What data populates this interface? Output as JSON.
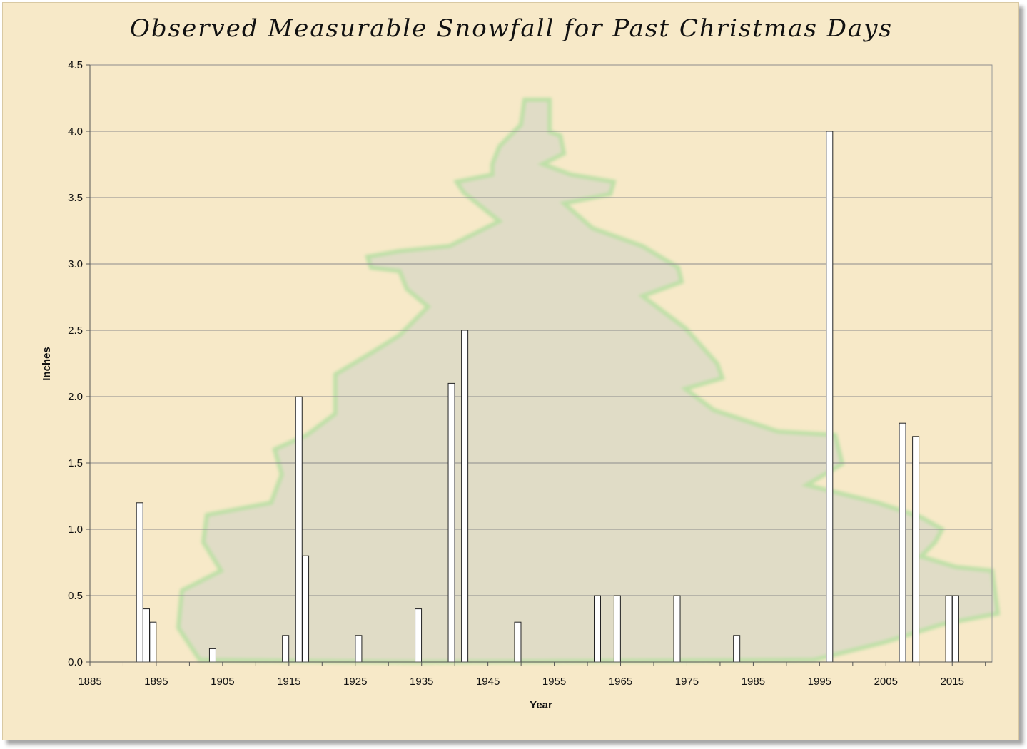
{
  "chart_data": {
    "type": "bar",
    "title": "Observed Measurable Snowfall for Past Christmas Days",
    "xlabel": "Year",
    "ylabel": "Inches",
    "xlim": [
      1885,
      2021
    ],
    "ylim": [
      0,
      4.5
    ],
    "x_ticks": [
      1885,
      1895,
      1905,
      1915,
      1925,
      1935,
      1945,
      1955,
      1965,
      1975,
      1985,
      1995,
      2005,
      2015
    ],
    "y_ticks": [
      "0.0",
      "0.5",
      "1.0",
      "1.5",
      "2.0",
      "2.5",
      "3.0",
      "3.5",
      "4.0",
      "4.5"
    ],
    "grid": "horizontal",
    "legend": "none",
    "bar_color": "#ffffff",
    "series": [
      {
        "x": [
          1892,
          1893,
          1894,
          1903,
          1914,
          1916,
          1917,
          1925,
          1934,
          1939,
          1941,
          1949,
          1961,
          1964,
          1973,
          1982,
          1996,
          2007,
          2009,
          2014,
          2015
        ],
        "values": [
          1.2,
          0.4,
          0.3,
          0.1,
          0.2,
          2.0,
          0.8,
          0.2,
          0.4,
          2.1,
          2.5,
          0.3,
          0.5,
          0.5,
          0.5,
          0.2,
          4.0,
          1.8,
          1.7,
          0.5,
          0.5
        ]
      }
    ]
  }
}
